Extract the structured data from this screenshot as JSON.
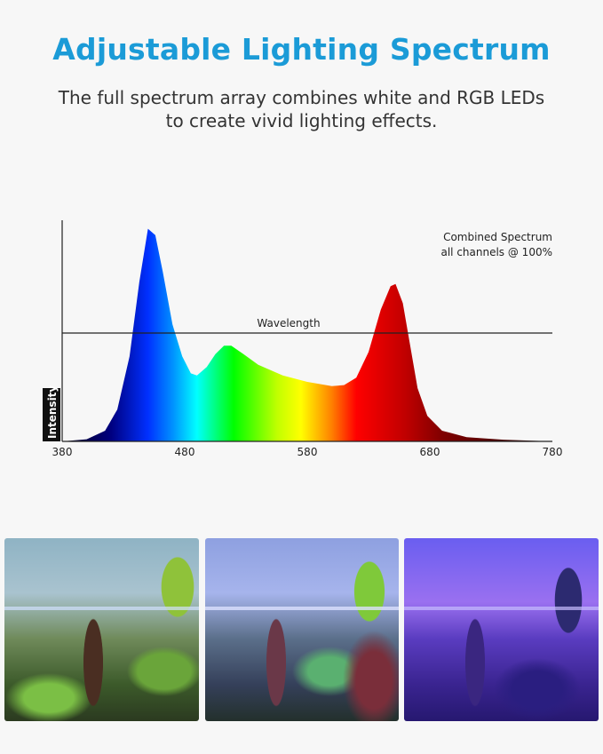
{
  "header": {
    "title": "Adjustable Lighting Spectrum",
    "subtitle_line1": "The full spectrum array combines white and RGB LEDs",
    "subtitle_line2": "to create vivid lighting effects."
  },
  "chart_data": {
    "type": "area",
    "title": "",
    "xlabel": "Wavelength",
    "ylabel": "Intensity",
    "xlim": [
      380,
      780
    ],
    "ylim": [
      0,
      1.04
    ],
    "x_ticks": [
      "380",
      "480",
      "580",
      "680",
      "780"
    ],
    "grid": false,
    "annotation_line1": "Combined Spectrum",
    "annotation_line2": "all channels @ 100%",
    "annotation_placement": "top-right",
    "fill": "visible-spectrum gradient",
    "series": [
      {
        "x": [
          380,
          400,
          415,
          425,
          435,
          443,
          450,
          456,
          462,
          470,
          478,
          485,
          490,
          498,
          505,
          512,
          518,
          528,
          540,
          560,
          580,
          600,
          610,
          620,
          630,
          640,
          648,
          652,
          658,
          664,
          670,
          678,
          690,
          710,
          740,
          780
        ],
        "y": [
          0,
          0.01,
          0.05,
          0.15,
          0.4,
          0.75,
          1.0,
          0.97,
          0.8,
          0.55,
          0.4,
          0.32,
          0.31,
          0.35,
          0.41,
          0.45,
          0.45,
          0.41,
          0.36,
          0.31,
          0.28,
          0.26,
          0.265,
          0.3,
          0.42,
          0.62,
          0.73,
          0.74,
          0.65,
          0.45,
          0.25,
          0.12,
          0.05,
          0.02,
          0.008,
          0
        ]
      }
    ],
    "spectrum_colors": [
      {
        "nm": 380,
        "color": "#050018"
      },
      {
        "nm": 420,
        "color": "#000080"
      },
      {
        "nm": 450,
        "color": "#0030ff"
      },
      {
        "nm": 470,
        "color": "#0090ff"
      },
      {
        "nm": 490,
        "color": "#00ffff"
      },
      {
        "nm": 520,
        "color": "#00ff00"
      },
      {
        "nm": 555,
        "color": "#c0ff00"
      },
      {
        "nm": 575,
        "color": "#ffff00"
      },
      {
        "nm": 600,
        "color": "#ff8000"
      },
      {
        "nm": 620,
        "color": "#ff0000"
      },
      {
        "nm": 660,
        "color": "#c00000"
      },
      {
        "nm": 690,
        "color": "#800000"
      },
      {
        "nm": 780,
        "color": "#200000"
      }
    ]
  },
  "photos": [
    {
      "tint": "#7fa8b8"
    },
    {
      "tint": "#7f92d6"
    },
    {
      "tint": "#6a52e0"
    }
  ]
}
